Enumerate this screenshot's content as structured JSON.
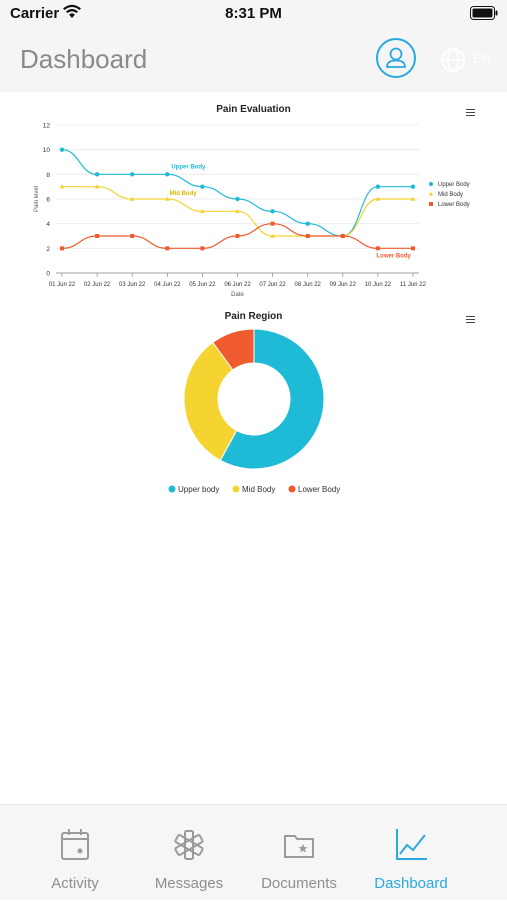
{
  "status_bar": {
    "carrier": "Carrier",
    "time": "8:31 PM"
  },
  "header": {
    "title": "Dashboard",
    "language": "EN"
  },
  "colors": {
    "upper": "#1fbad6",
    "mid": "#f5d330",
    "lower": "#ef5b2f",
    "accent": "#29a9e0"
  },
  "line_chart": {
    "title": "Pain Evaluation",
    "ylabel": "Pain level",
    "xlabel": "Date",
    "annotations": {
      "upper": "Upper Body",
      "mid": "Mid Body",
      "lower": "Lower Body"
    }
  },
  "donut_chart": {
    "title": "Pain Region"
  },
  "chart_data": [
    {
      "type": "line",
      "title": "Pain Evaluation",
      "xlabel": "Date",
      "ylabel": "Pain level",
      "ylim": [
        0,
        12
      ],
      "yticks": [
        0,
        2,
        4,
        6,
        8,
        10,
        12
      ],
      "categories": [
        "01 Jun 22",
        "02 Jun 22",
        "03 Jun 22",
        "04 Jun 22",
        "05 Jun 22",
        "06 Jun 22",
        "07 Jun 22",
        "08 Jun 22",
        "09 Jun 22",
        "10 Jun 22",
        "11 Jun 22"
      ],
      "series": [
        {
          "name": "Upper Body",
          "values": [
            10,
            8,
            8,
            8,
            7,
            6,
            5,
            4,
            3,
            7,
            7
          ]
        },
        {
          "name": "Mid Body",
          "values": [
            7,
            7,
            6,
            6,
            5,
            5,
            3,
            3,
            3,
            6,
            6
          ]
        },
        {
          "name": "Lower Body",
          "values": [
            2,
            3,
            3,
            2,
            2,
            3,
            4,
            3,
            3,
            2,
            2
          ]
        }
      ],
      "legend": "right",
      "grid": true
    },
    {
      "type": "pie",
      "title": "Pain Region",
      "donut": true,
      "labels": [
        "Upper body",
        "Mid Body",
        "Lower Body"
      ],
      "values": [
        58,
        32,
        10
      ],
      "legend": "bottom"
    }
  ],
  "tabs": [
    {
      "label": "Activity",
      "icon": "calendar-icon"
    },
    {
      "label": "Messages",
      "icon": "medical-star-icon"
    },
    {
      "label": "Documents",
      "icon": "folder-star-icon"
    },
    {
      "label": "Dashboard",
      "icon": "chart-line-icon"
    }
  ]
}
